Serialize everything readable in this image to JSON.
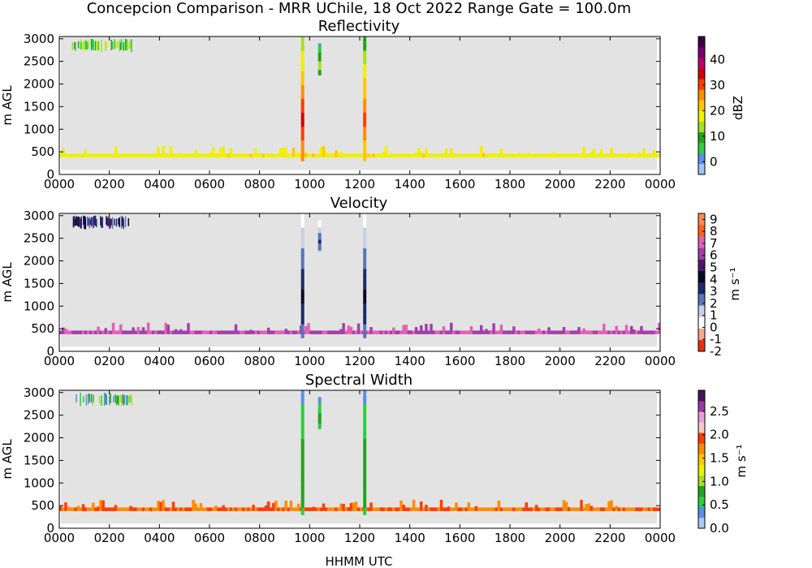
{
  "figure": {
    "title": "Concepcion Comparison - MRR UChile, 18 Oct 2022 Range Gate = 100.0m",
    "xlabel": "HHMM UTC"
  },
  "chart_data": [
    {
      "type": "heatmap",
      "title": "Reflectivity",
      "xlabel": "HHMM UTC",
      "ylabel": "m AGL",
      "x_ticks": [
        "0000",
        "0200",
        "0400",
        "0600",
        "0800",
        "1000",
        "1200",
        "1400",
        "1600",
        "1800",
        "2000",
        "2200",
        "0000"
      ],
      "y_ticks": [
        0,
        500,
        1000,
        1500,
        2000,
        2500,
        3000
      ],
      "xlim_hours": [
        0,
        24
      ],
      "ylim": [
        0,
        3050
      ],
      "background": "#e3e3e3",
      "colorbar": {
        "label": "dBZ",
        "range": [
          -5,
          49
        ],
        "ticks": [
          "0",
          "10",
          "20",
          "30",
          "40"
        ],
        "tick_values": [
          0,
          10,
          20,
          30,
          40
        ],
        "colors": [
          "#9ec4f4",
          "#5a8fea",
          "#2ccf3c",
          "#22a41c",
          "#a8e020",
          "#f0f000",
          "#ffc800",
          "#ff8c00",
          "#ff3c00",
          "#d40000",
          "#c0006a",
          "#7a0070",
          "#3c0046"
        ]
      },
      "features": [
        {
          "kind": "band",
          "hours": [
            0.0,
            24.0
          ],
          "heights_m": [
            380,
            460
          ],
          "value": 18,
          "note": "persistent low echo band"
        },
        {
          "kind": "streak",
          "hour": 9.72,
          "heights_m": [
            300,
            3050
          ],
          "peak_value": 35
        },
        {
          "kind": "streak",
          "hour": 10.4,
          "heights_m": [
            2200,
            2900
          ],
          "peak_value": 14
        },
        {
          "kind": "streak",
          "hour": 12.2,
          "heights_m": [
            300,
            3050
          ],
          "peak_value": 30
        },
        {
          "kind": "patch",
          "hours": [
            0.5,
            2.9
          ],
          "heights_m": [
            2700,
            3000
          ],
          "value": 10
        }
      ]
    },
    {
      "type": "heatmap",
      "title": "Velocity",
      "xlabel": "HHMM UTC",
      "ylabel": "m AGL",
      "x_ticks": [
        "0000",
        "0200",
        "0400",
        "0600",
        "0800",
        "1000",
        "1200",
        "1400",
        "1600",
        "1800",
        "2000",
        "2200",
        "0000"
      ],
      "y_ticks": [
        0,
        500,
        1000,
        1500,
        2000,
        2500,
        3000
      ],
      "xlim_hours": [
        0,
        24
      ],
      "ylim": [
        0,
        3050
      ],
      "background": "#e3e3e3",
      "colorbar": {
        "label": "m s⁻¹",
        "range": [
          -2,
          9.5
        ],
        "ticks": [
          "9",
          "8",
          "7",
          "6",
          "5",
          "4",
          "3",
          "2",
          "1",
          "0",
          "-1",
          "-2"
        ],
        "tick_values": [
          9,
          8,
          7,
          6,
          5,
          4,
          3,
          2,
          1,
          0,
          -1,
          -2
        ],
        "colors": [
          "#e83010",
          "#f6a890",
          "#ffffff",
          "#c6d0e6",
          "#5a76b8",
          "#1c2c6a",
          "#0a0a28",
          "#4a1a6a",
          "#a040a8",
          "#e062b8",
          "#ff6020",
          "#ff8c50"
        ]
      },
      "features": [
        {
          "kind": "band",
          "hours": [
            0.0,
            24.0
          ],
          "heights_m": [
            380,
            460
          ],
          "value": 6.5
        },
        {
          "kind": "streak",
          "hour": 9.72,
          "heights_m": [
            300,
            3050
          ],
          "peak_value": 4
        },
        {
          "kind": "streak",
          "hour": 10.4,
          "heights_m": [
            2200,
            2900
          ],
          "peak_value": 3
        },
        {
          "kind": "streak",
          "hour": 12.2,
          "heights_m": [
            300,
            3050
          ],
          "peak_value": 4
        },
        {
          "kind": "patch",
          "hours": [
            0.5,
            2.9
          ],
          "heights_m": [
            2700,
            3000
          ],
          "value": 4
        }
      ]
    },
    {
      "type": "heatmap",
      "title": "Spectral Width",
      "xlabel": "HHMM UTC",
      "ylabel": "m AGL",
      "x_ticks": [
        "0000",
        "0200",
        "0400",
        "0600",
        "0800",
        "1000",
        "1200",
        "1400",
        "1600",
        "1800",
        "2000",
        "2200",
        "0000"
      ],
      "y_ticks": [
        0,
        500,
        1000,
        1500,
        2000,
        2500,
        3000
      ],
      "xlim_hours": [
        0,
        24
      ],
      "ylim": [
        0,
        3050
      ],
      "background": "#e3e3e3",
      "colorbar": {
        "label": "m s⁻¹",
        "range": [
          0.0,
          2.95
        ],
        "ticks": [
          "0.0",
          "0.5",
          "1.0",
          "1.5",
          "2.0",
          "2.5"
        ],
        "tick_values": [
          0.0,
          0.5,
          1.0,
          1.5,
          2.0,
          2.5
        ],
        "colors": [
          "#aec8f4",
          "#5a8fea",
          "#2ccf3c",
          "#22a41c",
          "#a8e020",
          "#f0f000",
          "#ffc800",
          "#ff8c00",
          "#ff3c00",
          "#f4c8c8",
          "#e4a0d8",
          "#9a3aa0",
          "#4a1060"
        ]
      },
      "features": [
        {
          "kind": "band",
          "hours": [
            0.0,
            24.0
          ],
          "heights_m": [
            380,
            460
          ],
          "value": 1.8
        },
        {
          "kind": "streak",
          "hour": 9.72,
          "heights_m": [
            300,
            3050
          ],
          "peak_value": 0.9
        },
        {
          "kind": "streak",
          "hour": 10.4,
          "heights_m": [
            2200,
            2900
          ],
          "peak_value": 0.8
        },
        {
          "kind": "streak",
          "hour": 12.2,
          "heights_m": [
            300,
            3050
          ],
          "peak_value": 0.9
        },
        {
          "kind": "patch",
          "hours": [
            0.5,
            2.9
          ],
          "heights_m": [
            2700,
            3000
          ],
          "value": 0.6
        }
      ]
    }
  ]
}
